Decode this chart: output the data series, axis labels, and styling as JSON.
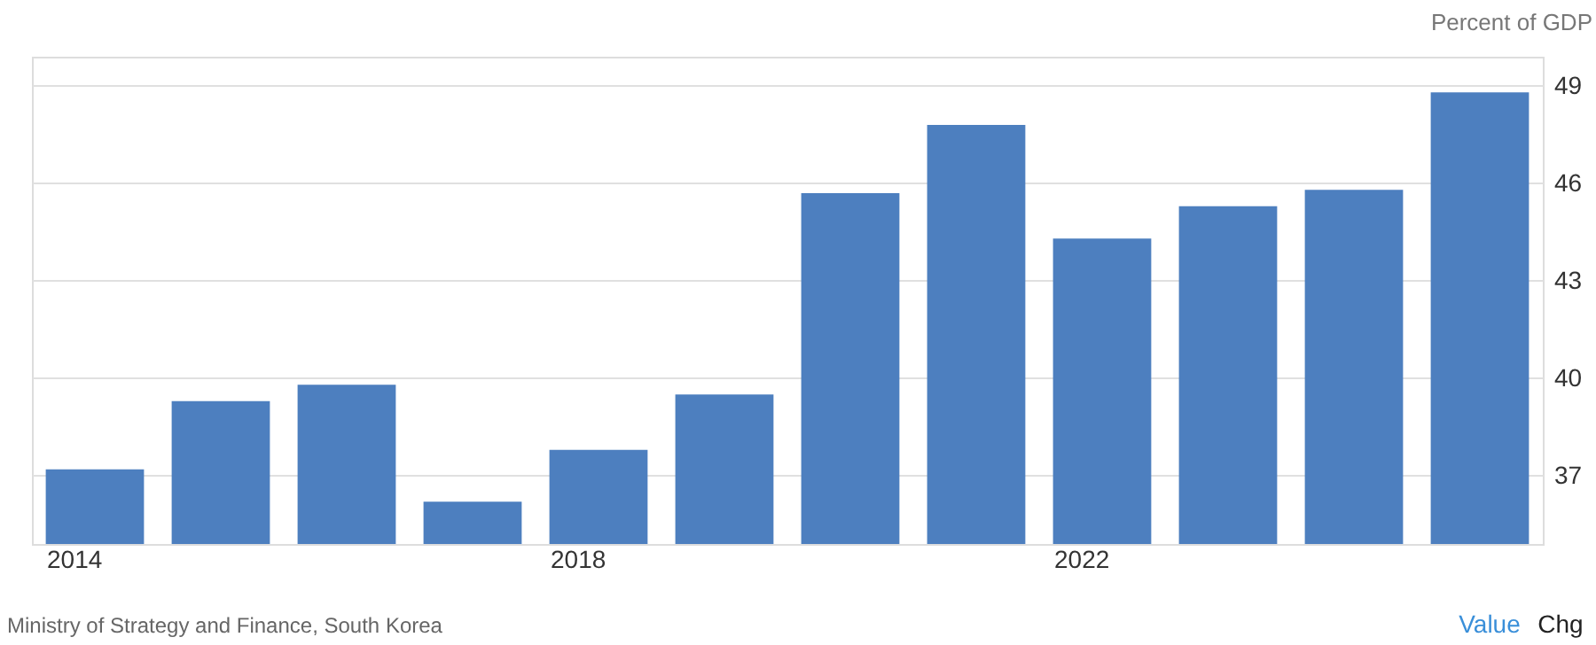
{
  "chart_data": {
    "type": "bar",
    "ylabel": "Percent of GDP",
    "categories": [
      "2014",
      null,
      null,
      null,
      "2018",
      null,
      null,
      null,
      "2022",
      null,
      null,
      null
    ],
    "values": [
      37.2,
      39.3,
      39.8,
      36.2,
      37.8,
      39.5,
      45.7,
      47.8,
      44.3,
      45.3,
      45.8,
      48.8
    ],
    "color": "#4d7fbf",
    "ylim": [
      34.9,
      49.9
    ],
    "yticks": [
      37,
      40,
      43,
      46,
      49
    ],
    "grid": "y",
    "annotations": [
      "Ministry of Strategy and Finance, South Korea",
      "Value",
      "Chg"
    ]
  }
}
